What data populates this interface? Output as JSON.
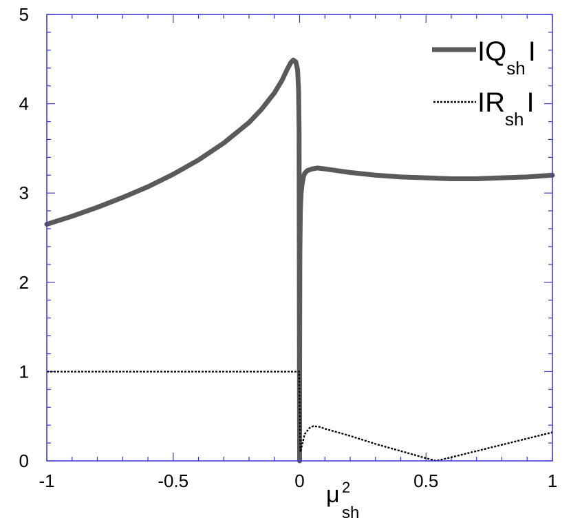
{
  "chart_data": {
    "type": "line",
    "xlabel": {
      "base": "μ",
      "superscript": "2",
      "subscript": "sh"
    },
    "ylabel": "",
    "xlim": [
      -1,
      1
    ],
    "ylim": [
      0,
      5
    ],
    "xticks": [
      -1,
      -0.5,
      0,
      0.5,
      1
    ],
    "xtick_labels": [
      "-1",
      "-0.5",
      "0",
      "0.5",
      "1"
    ],
    "yticks": [
      0,
      1,
      2,
      3,
      4,
      5
    ],
    "ytick_labels": [
      "0",
      "1",
      "2",
      "3",
      "4",
      "5"
    ],
    "grid": false,
    "legend_position": "top-right",
    "frame_color": "#3333cc",
    "series": [
      {
        "name": "|Q_sh|",
        "legend": {
          "base": "IQ",
          "subscript": "sh",
          "suffix": "I"
        },
        "color": "#5a5a5a",
        "style": "solid-thick",
        "x": [
          -1,
          -0.9,
          -0.8,
          -0.7,
          -0.6,
          -0.5,
          -0.4,
          -0.3,
          -0.2,
          -0.15,
          -0.1,
          -0.07,
          -0.05,
          -0.035,
          -0.025,
          -0.015,
          -0.008,
          -0.004,
          -0.002,
          0,
          0.0001,
          0.001,
          0.003,
          0.006,
          0.01,
          0.015,
          0.02,
          0.03,
          0.05,
          0.07,
          0.1,
          0.15,
          0.2,
          0.3,
          0.4,
          0.5,
          0.6,
          0.7,
          0.8,
          0.9,
          1
        ],
        "y": [
          2.65,
          2.74,
          2.84,
          2.95,
          3.07,
          3.21,
          3.37,
          3.56,
          3.79,
          3.94,
          4.12,
          4.26,
          4.38,
          4.46,
          4.49,
          4.47,
          4.38,
          4.15,
          3.7,
          0,
          1.1,
          2.3,
          2.8,
          3.0,
          3.1,
          3.18,
          3.22,
          3.25,
          3.27,
          3.28,
          3.27,
          3.25,
          3.23,
          3.2,
          3.18,
          3.17,
          3.16,
          3.16,
          3.17,
          3.18,
          3.2
        ]
      },
      {
        "name": "|R_sh|",
        "legend": {
          "base": "IR",
          "subscript": "sh",
          "suffix": "I"
        },
        "color": "#000000",
        "style": "dotted",
        "x": [
          -1,
          -0.5,
          -0.002,
          0.003,
          0.02,
          0.04,
          0.055,
          0.08,
          0.1,
          0.2,
          0.3,
          0.4,
          0.5,
          0.54,
          0.6,
          0.7,
          0.8,
          0.9,
          1
        ],
        "y": [
          1,
          1,
          1,
          0.1,
          0.3,
          0.37,
          0.39,
          0.38,
          0.36,
          0.28,
          0.19,
          0.11,
          0.03,
          0.0,
          0.04,
          0.11,
          0.18,
          0.25,
          0.32
        ]
      }
    ]
  }
}
